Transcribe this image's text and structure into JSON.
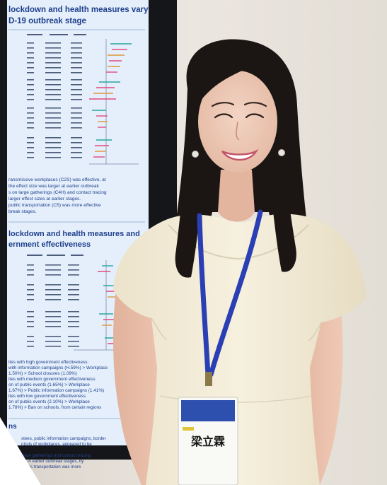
{
  "poster": {
    "section1_title_line1": "lockdown and health measures vary",
    "section1_title_line2": "D-19 outbreak stage",
    "section1_note_line1": "ransmissive workplaces (C2S) was effective, at",
    "section1_note_line2": "the effect size was larger at earlier outbreak",
    "section1_note_line3": "s on large gatherings (C4H) and contact tracing",
    "section1_note_line4": "larger effect sizes at earlier stages.",
    "section1_note_line5": "public transportation (C5) was more effective",
    "section1_note_line6": "break stages.",
    "section2_title_line1": "lockdown and health measures and",
    "section2_title_line2": "ernment effectiveness",
    "section2_note_line1": "ites with high government effectiveness:",
    "section2_note_line2": "with information campaigns (H.59%) > Workplace",
    "section2_note_line3": "1.50%) > School closures (1.09%)",
    "section2_note_line4": "ites with medium government effectiveness:",
    "section2_note_line5": "on of public events (1.65%) > Workplace",
    "section2_note_line6": "1.67%) > Public information campaigns (1.41%)",
    "section2_note_line7": "ites with low government effectiveness",
    "section2_note_line8": "on of public events (2.10%) > Workplace",
    "section2_note_line9": "1.78%) > Ban on schools, from certain regions",
    "section3_title": "ns",
    "section3_note_line1": "stees, public information campaigns, border",
    "section3_note_line2": "ntrols of workplaces, appeared to be",
    "section3_note_line3": "large gatherings and contact tracing",
    "section3_note_line4": "ter in earlier outbreak stages, by",
    "section3_note_line5": "public transportation was more"
  },
  "badge": {
    "header": "",
    "name": "梁立霖"
  },
  "colors": {
    "poster_bg": "#e4effb",
    "poster_title": "#1f3f8c",
    "lanyard": "#2b3fb4",
    "dress": "#f3ecd7",
    "hair": "#1b1614",
    "wall": "#e8e3dc"
  }
}
